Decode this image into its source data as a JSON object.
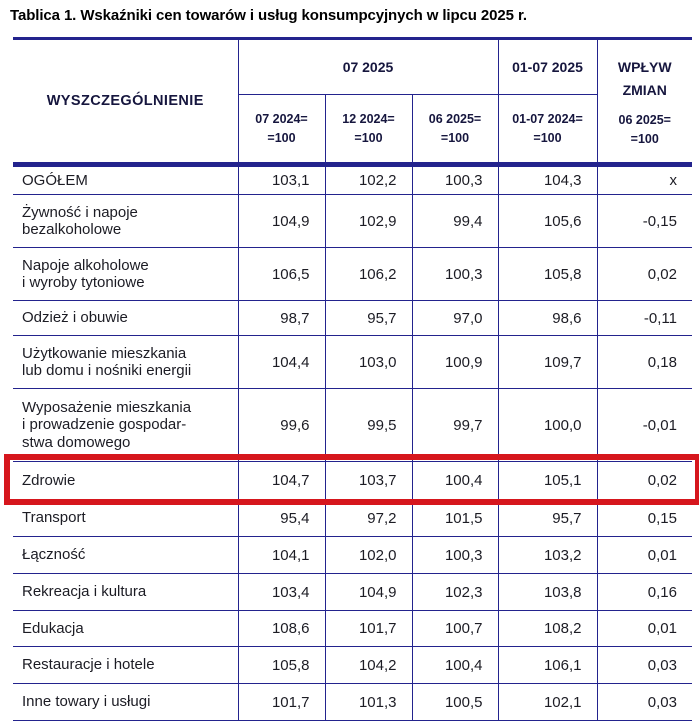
{
  "title": "Tablica 1. Wskaźniki cen towarów i usług konsumpcyjnych w lipcu 2025 r.",
  "colors": {
    "border_navy": "#23238d",
    "header_text": "#16163e",
    "body_text": "#1c1c24",
    "highlight_red": "#d6161d"
  },
  "table": {
    "header": {
      "specification": "WYSZCZEGÓLNIENIE",
      "group_month": "07 2025",
      "group_period": "01-07 2025",
      "impact": "WPŁYW\nZMIAN",
      "impact_sub": "06 2025=\n=100",
      "subs": [
        "07 2024=\n=100",
        "12 2024=\n=100",
        "06 2025=\n=100",
        "01-07 2024=\n=100"
      ]
    },
    "rows": [
      {
        "label": "OGÓŁEM",
        "values": [
          "103,1",
          "102,2",
          "100,3",
          "104,3",
          "x"
        ],
        "highlight": false
      },
      {
        "label": "Żywność i napoje\nbezalkoholowe",
        "values": [
          "104,9",
          "102,9",
          "99,4",
          "105,6",
          "-0,15"
        ],
        "highlight": false
      },
      {
        "label": "Napoje alkoholowe\ni wyroby tytoniowe",
        "values": [
          "106,5",
          "106,2",
          "100,3",
          "105,8",
          "0,02"
        ],
        "highlight": false
      },
      {
        "label": "Odzież i obuwie",
        "values": [
          "98,7",
          "95,7",
          "97,0",
          "98,6",
          "-0,11"
        ],
        "highlight": false
      },
      {
        "label": "Użytkowanie mieszkania\nlub domu i nośniki energii",
        "values": [
          "104,4",
          "103,0",
          "100,9",
          "109,7",
          "0,18"
        ],
        "highlight": false
      },
      {
        "label": "Wyposażenie mieszkania\ni prowadzenie gospodar-\nstwa domowego",
        "values": [
          "99,6",
          "99,5",
          "99,7",
          "100,0",
          "-0,01"
        ],
        "highlight": false
      },
      {
        "label": "Zdrowie",
        "values": [
          "104,7",
          "103,7",
          "100,4",
          "105,1",
          "0,02"
        ],
        "highlight": true
      },
      {
        "label": "Transport",
        "values": [
          "95,4",
          "97,2",
          "101,5",
          "95,7",
          "0,15"
        ],
        "highlight": false
      },
      {
        "label": "Łączność",
        "values": [
          "104,1",
          "102,0",
          "100,3",
          "103,2",
          "0,01"
        ],
        "highlight": false
      },
      {
        "label": "Rekreacja i kultura",
        "values": [
          "103,4",
          "104,9",
          "102,3",
          "103,8",
          "0,16"
        ],
        "highlight": false
      },
      {
        "label": "Edukacja",
        "values": [
          "108,6",
          "101,7",
          "100,7",
          "108,2",
          "0,01"
        ],
        "highlight": false
      },
      {
        "label": "Restauracje i hotele",
        "values": [
          "105,8",
          "104,2",
          "100,4",
          "106,1",
          "0,03"
        ],
        "highlight": false
      },
      {
        "label": "Inne towary i usługi",
        "values": [
          "101,7",
          "101,3",
          "100,5",
          "102,1",
          "0,03"
        ],
        "highlight": false
      }
    ]
  }
}
